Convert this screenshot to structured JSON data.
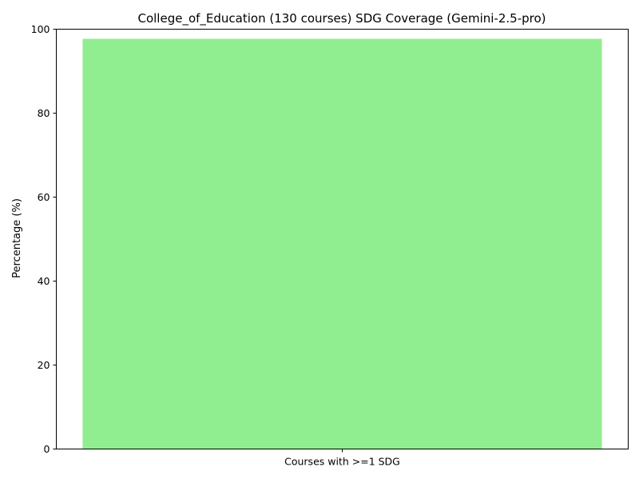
{
  "chart_data": {
    "type": "bar",
    "title": "College_of_Education (130 courses) SDG Coverage (Gemini-2.5-pro)",
    "xlabel": "",
    "ylabel": "Percentage (%)",
    "categories": [
      "Courses with >=1 SDG"
    ],
    "values": [
      97.7
    ],
    "ylim": [
      0,
      100
    ],
    "yticks": [
      0,
      20,
      40,
      60,
      80,
      100
    ],
    "bar_color": "#90ee90",
    "grid": false,
    "legend": "none"
  }
}
